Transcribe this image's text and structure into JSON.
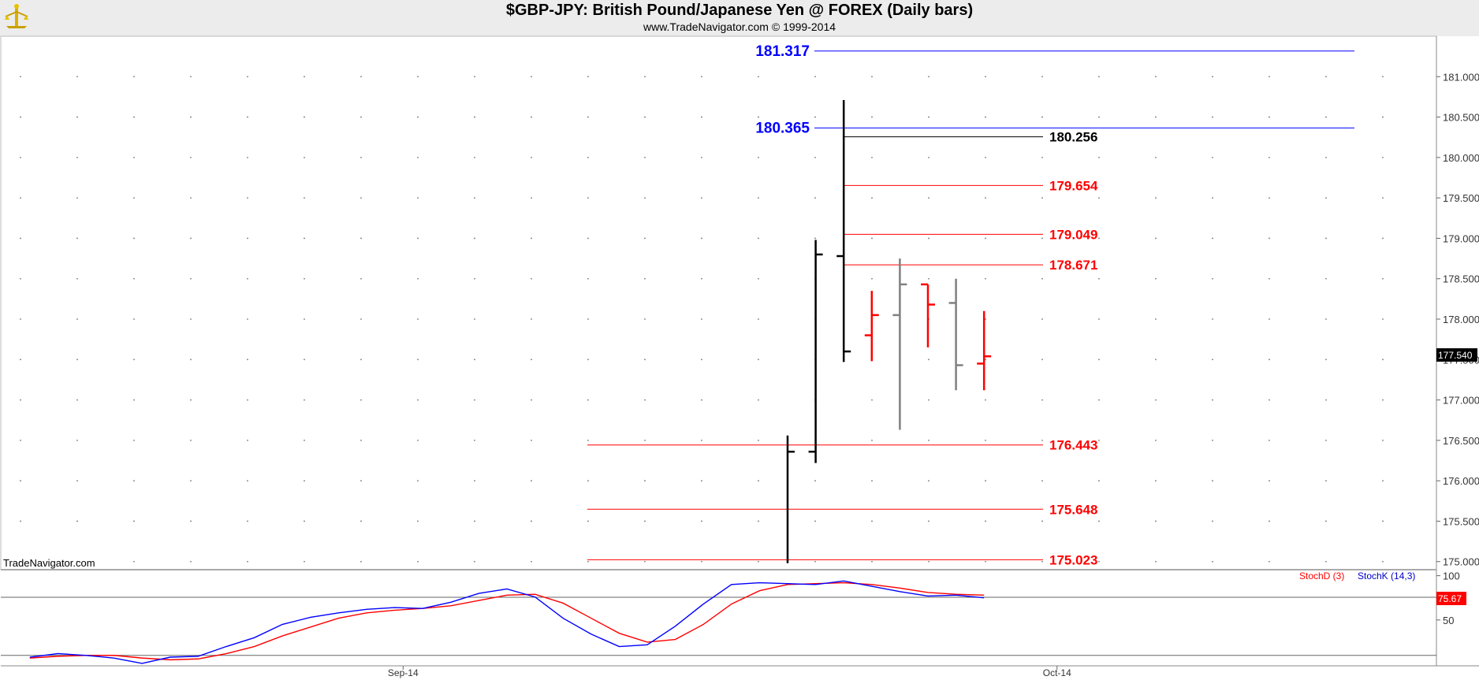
{
  "header": {
    "title": "$GBP-JPY:  British Pound/Japanese Yen @ FOREX  (Daily bars)",
    "subtitle": "www.TradeNavigator.com © 1999-2014",
    "watermark": "TradeNavigator.com"
  },
  "colors": {
    "up_bar": "#000000",
    "down_bar": "#ff0000",
    "neutral_bar": "#808080",
    "level_blue": "#0000ff",
    "level_red": "#ff0000",
    "stoch_d": "#ff0000",
    "stoch_k": "#0000ff"
  },
  "chart_data": [
    {
      "type": "ohlc",
      "title": "$GBP-JPY:  British Pound/Japanese Yen @ FOREX  (Daily bars)",
      "ylim": [
        174.9,
        181.5
      ],
      "y_ticks": [
        "181.000",
        "180.500",
        "180.000",
        "179.500",
        "179.000",
        "178.500",
        "178.000",
        "177.500",
        "177.000",
        "176.500",
        "176.000",
        "175.500",
        "175.000"
      ],
      "x_ticks": [
        {
          "label": "Sep-14",
          "index": -13.7
        },
        {
          "label": "Oct-14",
          "index": 9.6
        }
      ],
      "last_price": "177.540",
      "grid": true,
      "bars": [
        {
          "index": 0,
          "open": null,
          "high": 176.56,
          "low": 174.98,
          "close": 176.36,
          "color": "black"
        },
        {
          "index": 1,
          "open": 176.36,
          "high": 178.98,
          "low": 176.22,
          "close": 178.8,
          "color": "black"
        },
        {
          "index": 2,
          "open": 178.78,
          "high": 180.71,
          "low": 177.47,
          "close": 177.6,
          "color": "black"
        },
        {
          "index": 3,
          "open": 177.8,
          "high": 178.35,
          "low": 177.48,
          "close": 178.05,
          "color": "red"
        },
        {
          "index": 4,
          "open": 178.05,
          "high": 178.75,
          "low": 176.63,
          "close": 178.43,
          "color": "gray"
        },
        {
          "index": 5,
          "open": 178.43,
          "high": 178.43,
          "low": 177.65,
          "close": 178.18,
          "color": "red"
        },
        {
          "index": 6,
          "open": 178.2,
          "high": 178.5,
          "low": 177.12,
          "close": 177.43,
          "color": "gray"
        },
        {
          "index": 7,
          "open": 177.45,
          "high": 178.1,
          "low": 177.12,
          "close": 177.54,
          "color": "red"
        }
      ],
      "levels": [
        {
          "value": 181.317,
          "label": "181.317",
          "color": "blue",
          "label_side": "left"
        },
        {
          "value": 180.365,
          "label": "180.365",
          "color": "blue",
          "label_side": "left"
        },
        {
          "value": 180.256,
          "label": "180.256",
          "color": "black",
          "label_side": "right"
        },
        {
          "value": 179.654,
          "label": "179.654",
          "color": "red",
          "label_side": "right"
        },
        {
          "value": 179.049,
          "label": "179.049",
          "color": "red",
          "label_side": "right"
        },
        {
          "value": 178.671,
          "label": "178.671",
          "color": "red",
          "label_side": "right"
        },
        {
          "value": 176.443,
          "label": "176.443",
          "color": "red",
          "label_side": "right"
        },
        {
          "value": 175.648,
          "label": "175.648",
          "color": "red",
          "label_side": "right"
        },
        {
          "value": 175.023,
          "label": "175.023",
          "color": "red",
          "label_side": "right"
        }
      ]
    },
    {
      "type": "line",
      "title": "",
      "ylim": [
        0,
        105
      ],
      "y_ticks": [
        "100",
        "50"
      ],
      "reference_lines": [
        75.67,
        10
      ],
      "last_value": "75.67",
      "x": [
        -27,
        -26,
        -25,
        -24,
        -23,
        -22,
        -21,
        -20,
        -19,
        -18,
        -17,
        -16,
        -15,
        -14,
        -13,
        -12,
        -11,
        -10,
        -9,
        -8,
        -7,
        -6,
        -5,
        -4,
        -3,
        -2,
        -1,
        0,
        1,
        2,
        3,
        4,
        -0.5,
        5,
        6,
        7
      ],
      "series": [
        {
          "name": "StochK (14,3)",
          "color": "blue",
          "x": [
            -27,
            -26,
            -25,
            -24,
            -23,
            -22,
            -21,
            -20,
            -19,
            -18,
            -17,
            -16,
            -15,
            -14,
            -13,
            -12,
            -11,
            -10,
            -9,
            -8,
            -7,
            -6,
            -5,
            -4,
            -3,
            -2,
            -1,
            0,
            1,
            2,
            3,
            4,
            5,
            6,
            7
          ],
          "values": [
            8,
            12,
            10,
            7,
            1,
            8,
            9,
            20,
            30,
            45,
            53,
            58,
            62,
            64,
            63,
            70,
            80,
            85,
            76,
            52,
            34,
            20,
            22,
            43,
            68,
            90,
            92,
            91,
            90,
            94,
            88,
            82,
            77,
            78,
            75
          ]
        },
        {
          "name": "StochD (3)",
          "color": "red",
          "x": [
            -27,
            -26,
            -25,
            -24,
            -23,
            -22,
            -21,
            -20,
            -19,
            -18,
            -17,
            -16,
            -15,
            -14,
            -13,
            -12,
            -11,
            -10,
            -9,
            -8,
            -7,
            -6,
            -5,
            -4,
            -3,
            -2,
            -1,
            0,
            1,
            2,
            3,
            4,
            5,
            6,
            7
          ],
          "values": [
            7,
            9,
            10,
            10,
            7,
            5,
            6,
            12,
            20,
            32,
            42,
            52,
            58,
            61,
            63,
            66,
            72,
            78,
            79,
            69,
            52,
            35,
            25,
            28,
            45,
            68,
            83,
            90,
            91,
            92,
            90,
            86,
            81,
            79,
            78
          ]
        }
      ],
      "legend": [
        "StochD (3)",
        "StochK (14,3)"
      ]
    }
  ]
}
